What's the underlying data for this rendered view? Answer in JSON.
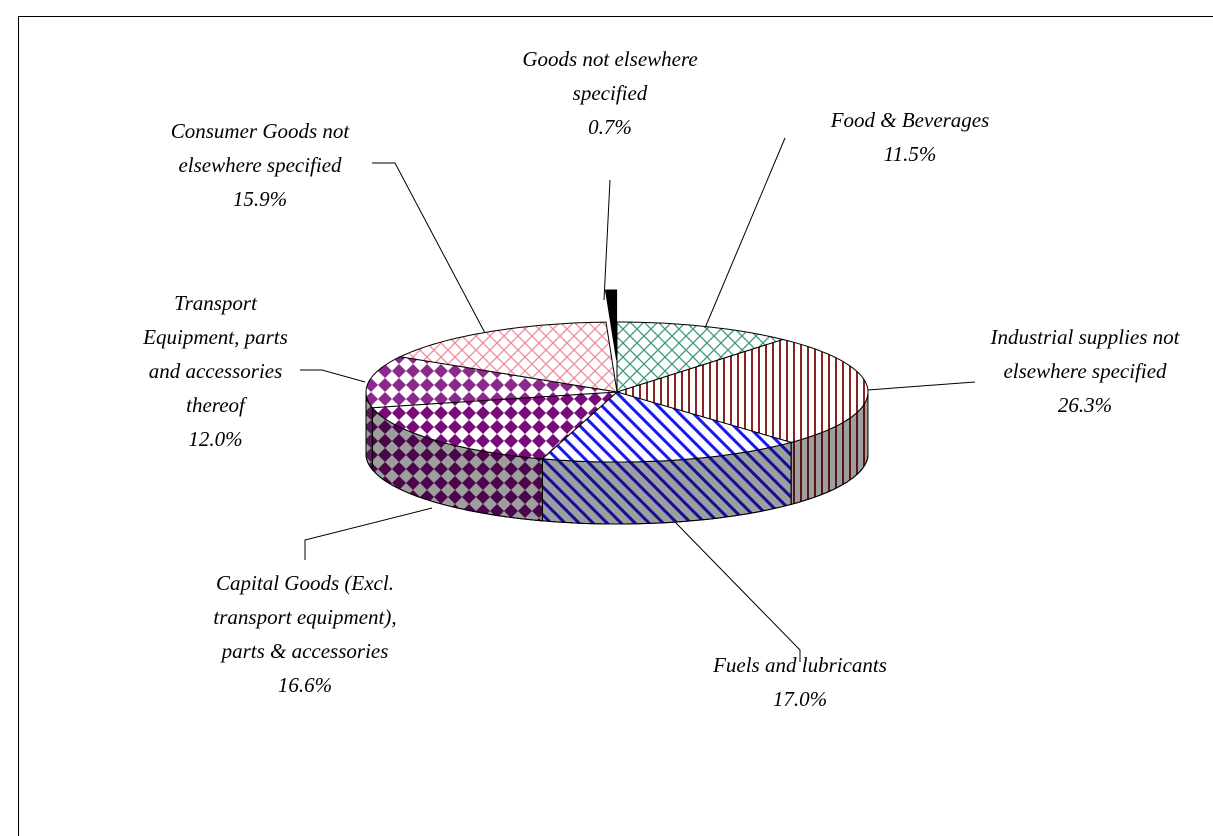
{
  "chart_data": {
    "type": "pie3d",
    "categories": [
      "Food & Beverages",
      "Industrial supplies not elsewhere specified",
      "Fuels and lubricants",
      "Capital Goods (Excl. transport equipment), parts & accessories",
      "Transport Equipment, parts and accessories thereof",
      "Consumer Goods not elsewhere specified",
      "Goods not elsewhere specified"
    ],
    "values": [
      11.5,
      26.3,
      17.0,
      16.6,
      12.0,
      15.9,
      0.7
    ],
    "value_labels": [
      "11.5%",
      "26.3%",
      "17.0%",
      "16.6%",
      "12.0%",
      "15.9%",
      "0.7%"
    ],
    "colors": [
      "#3a9a78",
      "#8b2323",
      "#1a1aee",
      "#7a0a7a",
      "#8a2a8a",
      "#f08a9a",
      "#000000"
    ],
    "patterns": [
      "crosshatch",
      "vertical",
      "diagonal",
      "diamond",
      "diamond",
      "crosshatch",
      "solid"
    ],
    "exploded": [
      6
    ]
  }
}
